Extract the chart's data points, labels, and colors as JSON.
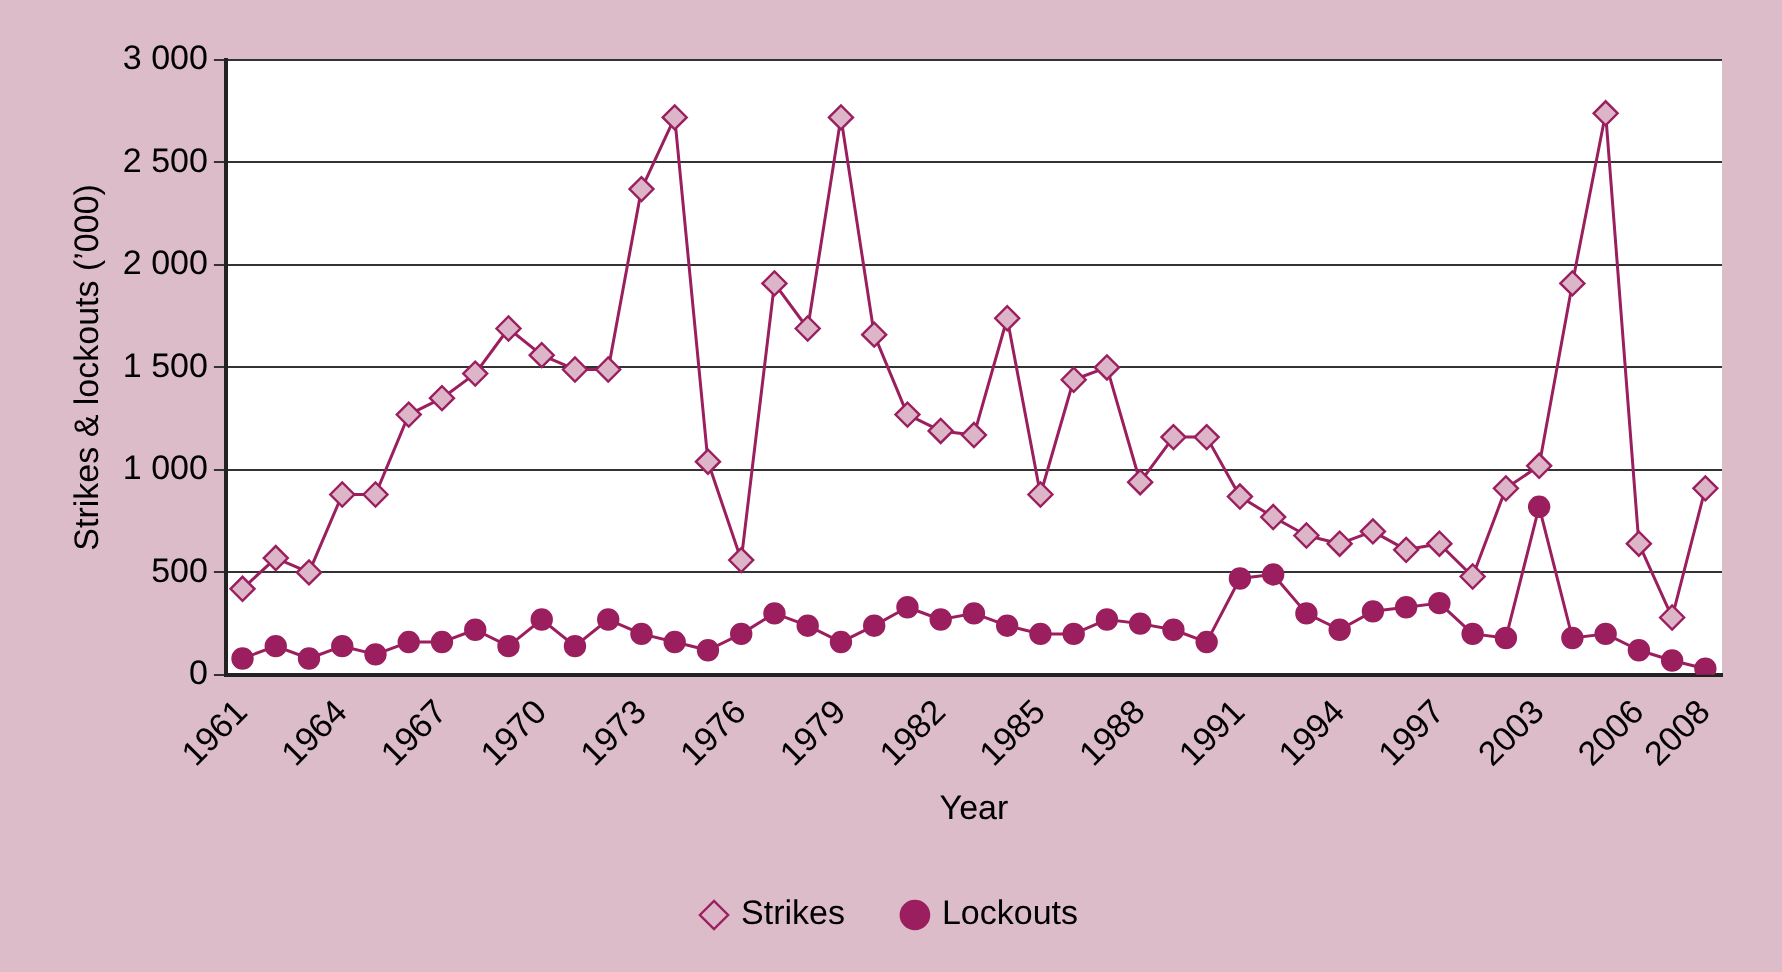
{
  "chart_data": {
    "type": "line",
    "xlabel": "Year",
    "ylabel": "Strikes & lockouts (’000)",
    "categories": [
      "1961",
      null,
      null,
      "1964",
      null,
      null,
      "1967",
      null,
      null,
      "1970",
      null,
      null,
      "1973",
      null,
      null,
      "1976",
      null,
      null,
      "1979",
      null,
      null,
      "1982",
      null,
      null,
      "1985",
      null,
      null,
      "1988",
      null,
      null,
      "1991",
      null,
      null,
      "1994",
      null,
      null,
      "1997",
      null,
      null,
      "2003",
      null,
      null,
      "2006",
      null,
      "2008"
    ],
    "series": [
      {
        "name": "Strikes",
        "color": "#9b1f5e",
        "marker": "diamond",
        "values": [
          420,
          570,
          500,
          880,
          880,
          1270,
          1350,
          1470,
          1690,
          1560,
          1490,
          1490,
          2370,
          2720,
          1040,
          560,
          1910,
          1690,
          2720,
          1660,
          1270,
          1190,
          1170,
          1740,
          880,
          1440,
          1500,
          940,
          1160,
          1160,
          870,
          770,
          680,
          640,
          700,
          610,
          640,
          480,
          910,
          1020,
          1910,
          2740,
          640,
          280,
          910
        ]
      },
      {
        "name": "Lockouts",
        "color": "#9b1f5e",
        "marker": "circle",
        "values": [
          80,
          140,
          80,
          140,
          100,
          160,
          160,
          220,
          140,
          270,
          140,
          270,
          200,
          160,
          120,
          200,
          300,
          240,
          160,
          240,
          330,
          270,
          300,
          240,
          200,
          200,
          270,
          250,
          220,
          160,
          470,
          490,
          300,
          220,
          310,
          330,
          350,
          200,
          180,
          820,
          180,
          200,
          120,
          70,
          30
        ]
      }
    ],
    "ylim": [
      0,
      3000
    ],
    "yticks": [
      0,
      {
        "value": 500,
        "label": "500"
      },
      {
        "value": 1000,
        "label": "1 000"
      },
      {
        "value": 1500,
        "label": "1 500"
      },
      {
        "value": 2000,
        "label": "2 000"
      },
      {
        "value": 2500,
        "label": "2 500"
      },
      {
        "value": 3000,
        "label": "3 000"
      }
    ],
    "grid": "y",
    "legend": "bottom"
  }
}
